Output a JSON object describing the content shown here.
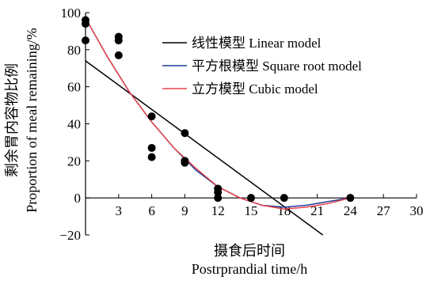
{
  "chart_data": {
    "type": "scatter",
    "xlabel_cn": "摄食后时间",
    "xlabel": "Postrprandial time/h",
    "ylabel_cn": "剩余胃内容物比例",
    "ylabel": "Proportion of meal remaining/%",
    "xlim": [
      0,
      30
    ],
    "ylim": [
      -20,
      100
    ],
    "x_ticks": [
      3,
      6,
      9,
      12,
      15,
      18,
      21,
      24,
      27,
      30
    ],
    "y_ticks": [
      -20,
      0,
      20,
      40,
      60,
      80,
      100
    ],
    "grid": false,
    "legend_position": "top-right",
    "points": [
      {
        "x": 0,
        "y": 96
      },
      {
        "x": 0,
        "y": 94
      },
      {
        "x": 0,
        "y": 85
      },
      {
        "x": 3,
        "y": 87
      },
      {
        "x": 3,
        "y": 85
      },
      {
        "x": 3,
        "y": 77
      },
      {
        "x": 6,
        "y": 44
      },
      {
        "x": 6,
        "y": 27
      },
      {
        "x": 6,
        "y": 22
      },
      {
        "x": 9,
        "y": 35
      },
      {
        "x": 9,
        "y": 20
      },
      {
        "x": 9,
        "y": 19
      },
      {
        "x": 12,
        "y": 5
      },
      {
        "x": 12,
        "y": 3
      },
      {
        "x": 12,
        "y": 0
      },
      {
        "x": 15,
        "y": 0
      },
      {
        "x": 18,
        "y": 0
      },
      {
        "x": 24,
        "y": 0
      }
    ],
    "series": [
      {
        "name": "线性模型 Linear model",
        "color": "#000000",
        "x": [
          0,
          21.5
        ],
        "y": [
          74,
          -20
        ]
      },
      {
        "name": "平方根模型 Square root model",
        "color": "#1f3d99",
        "x": [
          0,
          2,
          4,
          6,
          8,
          10,
          12,
          14,
          16,
          18,
          20,
          22,
          24
        ],
        "y": [
          97,
          76,
          57,
          41,
          27,
          15,
          6,
          0,
          -4,
          -5,
          -4,
          -2,
          0
        ]
      },
      {
        "name": "立方模型 Cubic model",
        "color": "#e8424b",
        "x": [
          0,
          2,
          4,
          6,
          8,
          10,
          12,
          14,
          16,
          18,
          20,
          22,
          24
        ],
        "y": [
          97,
          76,
          57,
          41,
          27,
          16,
          6,
          0,
          -4,
          -6,
          -5,
          -3,
          0
        ]
      }
    ]
  }
}
